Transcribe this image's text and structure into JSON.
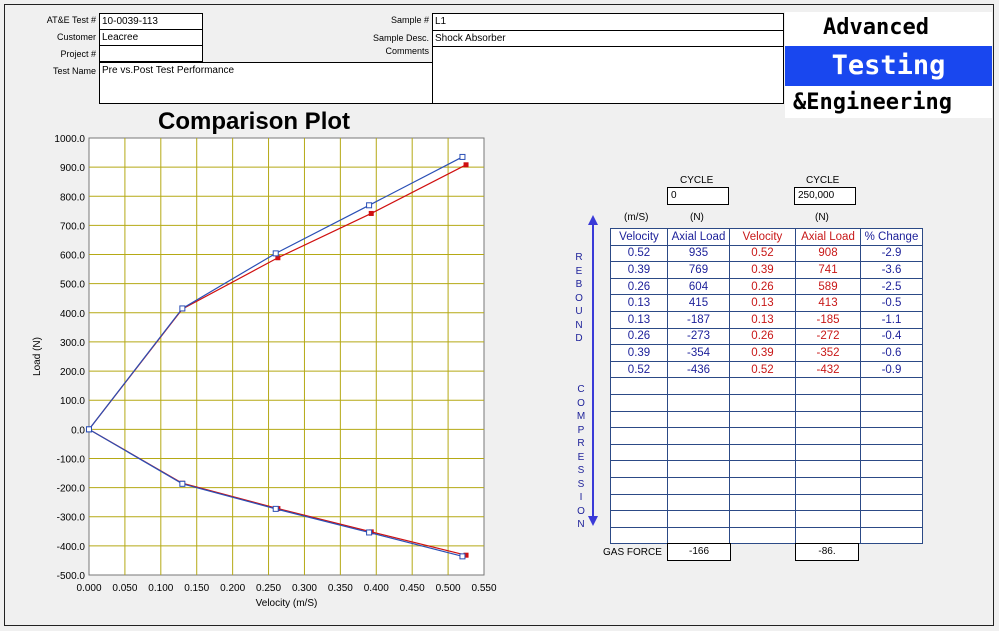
{
  "header": {
    "test_num_label": "AT&E Test #",
    "test_num": "10-0039-113",
    "customer_label": "Customer",
    "customer": "Leacree",
    "project_label": "Project #",
    "project": "",
    "test_name_label": "Test Name",
    "test_name": "Pre vs.Post Test Performance",
    "sample_label": "Sample #",
    "sample": "L1",
    "sample_desc_label": "Sample Desc.",
    "sample_desc": "Shock Absorber",
    "comments_label": "Comments",
    "comments": ""
  },
  "logo": {
    "line1": "Advanced",
    "line2": "Testing",
    "line3": "&Engineering",
    "accent": "#1947ef"
  },
  "chart_data": {
    "type": "line",
    "title": "Comparison Plot",
    "xlabel": "Velocity (m/S)",
    "ylabel": "Load (N)",
    "xlim": [
      0,
      0.55
    ],
    "ylim": [
      -500,
      1000
    ],
    "xticks": [
      "0.000",
      "0.050",
      "0.100",
      "0.150",
      "0.200",
      "0.250",
      "0.300",
      "0.350",
      "0.400",
      "0.450",
      "0.500",
      "0.550"
    ],
    "yticks": [
      "1000.0",
      "900.0",
      "800.0",
      "700.0",
      "600.0",
      "500.0",
      "400.0",
      "300.0",
      "200.0",
      "100.0",
      "0.0",
      "-100.0",
      "-200.0",
      "-300.0",
      "-400.0",
      "-500.0"
    ],
    "grid": true,
    "series": [
      {
        "color": "#2a4fb5",
        "marker": "open-square",
        "rebound": [
          [
            0,
            0
          ],
          [
            0.13,
            415
          ],
          [
            0.26,
            604
          ],
          [
            0.39,
            769
          ],
          [
            0.52,
            935
          ]
        ],
        "compression": [
          [
            0,
            0
          ],
          [
            0.13,
            -187
          ],
          [
            0.26,
            -273
          ],
          [
            0.39,
            -354
          ],
          [
            0.52,
            -436
          ]
        ]
      },
      {
        "color": "#d01010",
        "marker": "filled-square",
        "rebound": [
          [
            0,
            0
          ],
          [
            0.13,
            413
          ],
          [
            0.263,
            589
          ],
          [
            0.393,
            741
          ],
          [
            0.525,
            908
          ]
        ],
        "compression": [
          [
            0,
            0
          ],
          [
            0.13,
            -185
          ],
          [
            0.263,
            -272
          ],
          [
            0.393,
            -352
          ],
          [
            0.525,
            -432
          ]
        ]
      }
    ]
  },
  "results": {
    "cycle_label": "CYCLE",
    "cycle_a": "0",
    "cycle_b": "250,000",
    "units_velocity": "(m/S)",
    "units_load": "(N)",
    "headers": [
      "Velocity",
      "Axial Load",
      "Velocity",
      "Axial Load",
      "% Change"
    ],
    "rows": [
      [
        "0.52",
        "935",
        "0.52",
        "908",
        "-2.9"
      ],
      [
        "0.39",
        "769",
        "0.39",
        "741",
        "-3.6"
      ],
      [
        "0.26",
        "604",
        "0.26",
        "589",
        "-2.5"
      ],
      [
        "0.13",
        "415",
        "0.13",
        "413",
        "-0.5"
      ],
      [
        "0.13",
        "-187",
        "0.13",
        "-185",
        "-1.1"
      ],
      [
        "0.26",
        "-273",
        "0.26",
        "-272",
        "-0.4"
      ],
      [
        "0.39",
        "-354",
        "0.39",
        "-352",
        "-0.6"
      ],
      [
        "0.52",
        "-436",
        "0.52",
        "-432",
        "-0.9"
      ]
    ],
    "empty_rows": 10,
    "rebound_label": "REBOUND",
    "compression_label": "COMPRESSION",
    "gas_force_label": "GAS FORCE",
    "gas_force_a": "-166",
    "gas_force_b": "-86."
  }
}
